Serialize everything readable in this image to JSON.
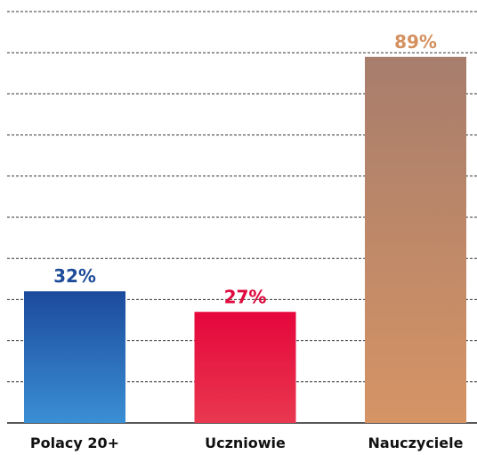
{
  "chart_data": {
    "type": "bar",
    "categories": [
      "Polacy 20+",
      "Uczniowie",
      "Nauczyciele"
    ],
    "values": [
      32,
      27,
      89
    ],
    "value_labels": [
      "32%",
      "27%",
      "89%"
    ],
    "colors": [
      [
        "#1c4a9c",
        "#3a8fd4"
      ],
      [
        "#e6063c",
        "#e8384f"
      ],
      [
        "#a77d6c",
        "#d69465"
      ]
    ],
    "label_colors": [
      "#1e4c9a",
      "#e0083e",
      "#d4905e"
    ],
    "ylim": [
      0,
      100
    ],
    "yticks": [
      0,
      10,
      20,
      30,
      40,
      50,
      60,
      70,
      80,
      90,
      100
    ],
    "grid": true
  }
}
